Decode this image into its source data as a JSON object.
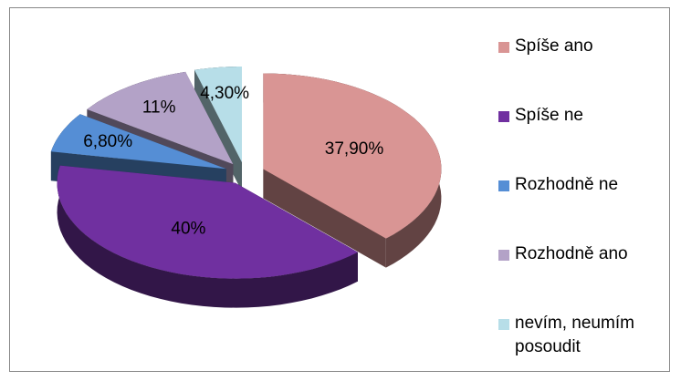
{
  "chart_data": {
    "type": "pie",
    "three_d": true,
    "exploded": true,
    "categories": [
      "Spíše ano",
      "Spíše ne",
      "Rozhodně ne",
      "Rozhodně ano",
      "nevím, neumím posoudit"
    ],
    "values": [
      37.9,
      40,
      6.8,
      11,
      4.3
    ],
    "value_labels": [
      "37,90%",
      "40%",
      "6,80%",
      "11%",
      "4,30%"
    ],
    "colors": [
      "#d99594",
      "#7030a0",
      "#558ed5",
      "#b3a2c7",
      "#b7dee8"
    ],
    "legend": "right"
  }
}
